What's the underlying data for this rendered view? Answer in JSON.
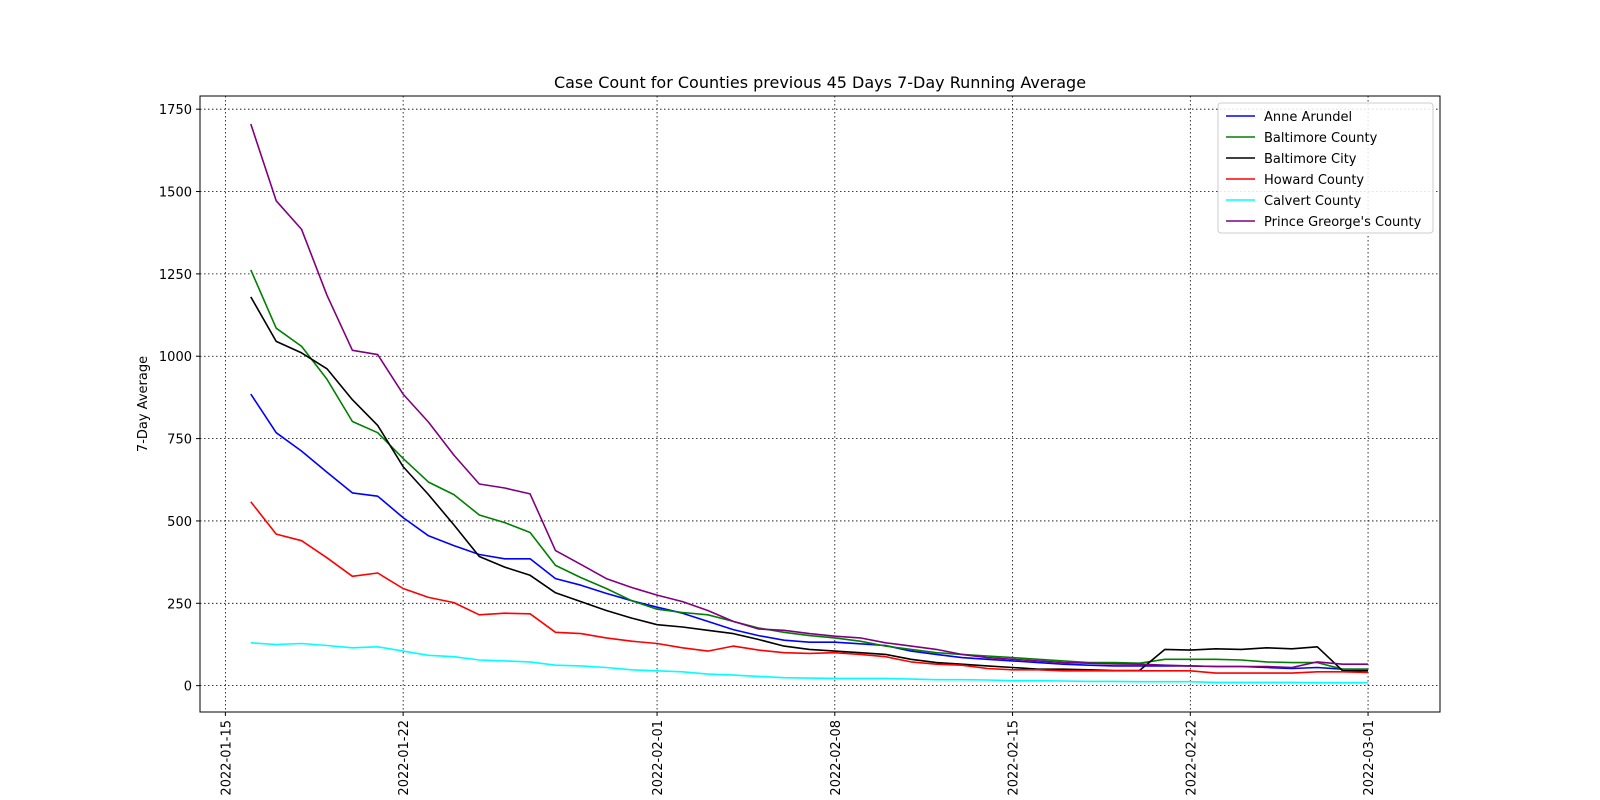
{
  "chart_data": {
    "type": "line",
    "title": "Case Count for Counties previous 45 Days 7-Day Running Average",
    "xlabel": "",
    "ylabel": "7-Day Average",
    "x_ticks": [
      "2022-01-15",
      "2022-01-22",
      "2022-02-01",
      "2022-02-08",
      "2022-02-15",
      "2022-02-22",
      "2022-03-01"
    ],
    "y_ticks": [
      0,
      250,
      500,
      750,
      1000,
      1250,
      1500,
      1750
    ],
    "xlim": [
      "2022-01-14T00:00",
      "2022-03-03T20:00"
    ],
    "ylim": [
      -80,
      1790
    ],
    "grid": true,
    "legend_position": "top-right",
    "x": [
      "2022-01-16",
      "2022-01-17",
      "2022-01-18",
      "2022-01-19",
      "2022-01-20",
      "2022-01-21",
      "2022-01-22",
      "2022-01-23",
      "2022-01-24",
      "2022-01-25",
      "2022-01-26",
      "2022-01-27",
      "2022-01-28",
      "2022-01-29",
      "2022-01-30",
      "2022-01-31",
      "2022-02-01",
      "2022-02-02",
      "2022-02-03",
      "2022-02-04",
      "2022-02-05",
      "2022-02-06",
      "2022-02-07",
      "2022-02-08",
      "2022-02-09",
      "2022-02-10",
      "2022-02-11",
      "2022-02-12",
      "2022-02-13",
      "2022-02-14",
      "2022-02-15",
      "2022-02-16",
      "2022-02-17",
      "2022-02-18",
      "2022-02-19",
      "2022-02-20",
      "2022-02-21",
      "2022-02-22",
      "2022-02-23",
      "2022-02-24",
      "2022-02-25",
      "2022-02-26",
      "2022-02-27",
      "2022-02-28",
      "2022-03-01"
    ],
    "series": [
      {
        "name": "Anne Arundel",
        "color": "#0000ff",
        "values": [
          885,
          768,
          712,
          648,
          585,
          575,
          510,
          455,
          425,
          398,
          385,
          385,
          325,
          305,
          280,
          258,
          238,
          220,
          195,
          170,
          152,
          138,
          132,
          132,
          127,
          122,
          105,
          95,
          85,
          80,
          75,
          70,
          65,
          62,
          60,
          60,
          60,
          60,
          58,
          58,
          55,
          52,
          55,
          50,
          50
        ]
      },
      {
        "name": "Baltimore County",
        "color": "#008000",
        "values": [
          1262,
          1085,
          1030,
          930,
          802,
          768,
          690,
          618,
          580,
          518,
          495,
          465,
          365,
          328,
          295,
          258,
          232,
          222,
          215,
          195,
          175,
          162,
          152,
          145,
          135,
          120,
          110,
          100,
          95,
          90,
          85,
          80,
          75,
          70,
          70,
          68,
          80,
          80,
          80,
          78,
          72,
          70,
          70,
          50,
          50
        ]
      },
      {
        "name": "Baltimore City",
        "color": "#000000",
        "values": [
          1180,
          1045,
          1010,
          962,
          868,
          790,
          665,
          580,
          488,
          392,
          360,
          335,
          282,
          255,
          228,
          205,
          185,
          178,
          168,
          158,
          140,
          120,
          110,
          105,
          100,
          95,
          80,
          70,
          65,
          60,
          55,
          50,
          50,
          48,
          46,
          46,
          110,
          108,
          112,
          110,
          115,
          112,
          118,
          45,
          45
        ]
      },
      {
        "name": "Howard County",
        "color": "#ff0000",
        "values": [
          558,
          460,
          440,
          388,
          332,
          342,
          295,
          268,
          252,
          215,
          220,
          218,
          162,
          158,
          145,
          135,
          128,
          115,
          105,
          120,
          108,
          100,
          98,
          100,
          95,
          88,
          72,
          65,
          62,
          52,
          48,
          48,
          45,
          45,
          45,
          45,
          45,
          45,
          38,
          38,
          38,
          38,
          42,
          42,
          40
        ]
      },
      {
        "name": "Calvert County",
        "color": "#00ffff",
        "values": [
          130,
          125,
          128,
          122,
          115,
          118,
          105,
          92,
          88,
          78,
          75,
          72,
          62,
          60,
          55,
          48,
          45,
          42,
          35,
          32,
          28,
          24,
          23,
          22,
          22,
          22,
          20,
          18,
          18,
          17,
          15,
          15,
          14,
          13,
          13,
          12,
          12,
          12,
          10,
          10,
          10,
          10,
          9,
          9,
          9
        ]
      },
      {
        "name": "Prince Greorge's County",
        "color": "#800080",
        "values": [
          1705,
          1472,
          1385,
          1185,
          1018,
          1005,
          885,
          800,
          700,
          612,
          600,
          582,
          410,
          368,
          325,
          298,
          275,
          255,
          228,
          195,
          172,
          168,
          158,
          150,
          145,
          130,
          120,
          110,
          95,
          85,
          80,
          75,
          70,
          68,
          66,
          65,
          62,
          60,
          58,
          58,
          58,
          55,
          72,
          65,
          65
        ]
      }
    ]
  }
}
